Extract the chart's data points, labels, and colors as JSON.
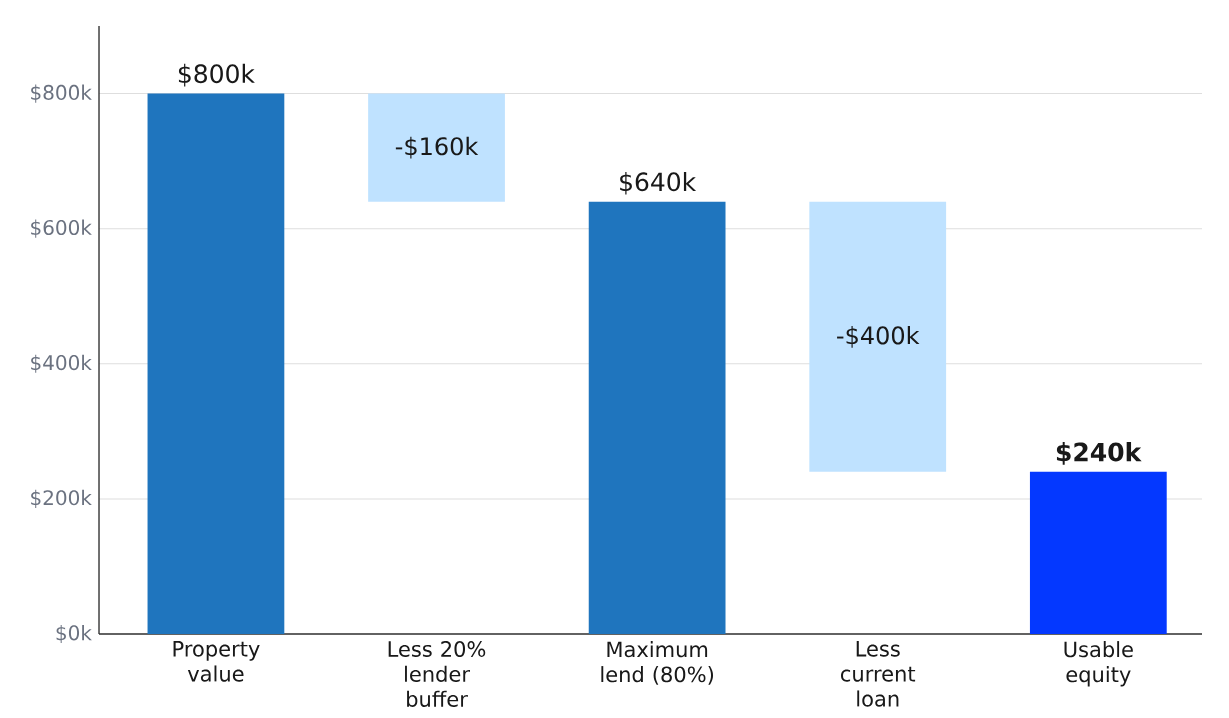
{
  "chart_data": {
    "type": "bar",
    "categories": [
      "Property value",
      "Less 20% lender buffer",
      "Maximum lend (80%)",
      "Less current loan",
      "Usable equity"
    ],
    "values": [
      800,
      -160,
      640,
      -400,
      240
    ],
    "base": [
      0,
      800,
      0,
      640,
      0
    ],
    "colors": [
      "#1f75be",
      "#bfe2ff",
      "#1f75be",
      "#bfe2ff",
      "#0438ff"
    ],
    "value_labels": [
      "$800k",
      "-$160k",
      "$640k",
      "-$400k",
      "**$240k**"
    ],
    "ylim": [
      0,
      900
    ],
    "yticks": [
      {
        "value": 0,
        "label": "$0k"
      },
      {
        "value": 200,
        "label": "$200k"
      },
      {
        "value": 400,
        "label": "$400k"
      },
      {
        "value": 600,
        "label": "$600k"
      },
      {
        "value": 800,
        "label": "$800k"
      }
    ],
    "grid": "y"
  }
}
